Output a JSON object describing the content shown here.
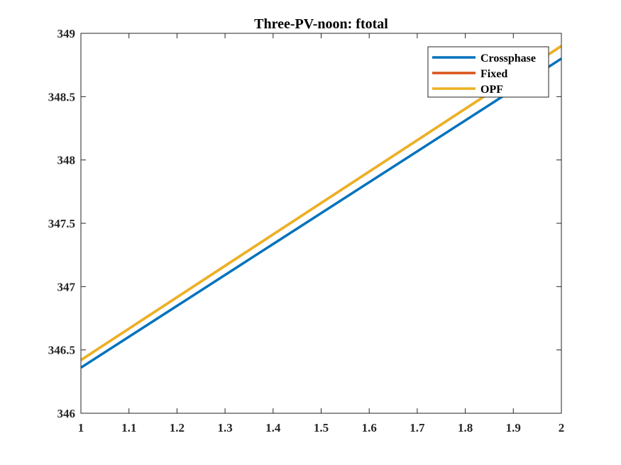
{
  "chart_data": {
    "type": "line",
    "title": "Three-PV-noon: ftotal",
    "xlabel": "",
    "ylabel": "",
    "xlim": [
      1,
      2
    ],
    "ylim": [
      346,
      349
    ],
    "xticks": [
      1,
      1.1,
      1.2,
      1.3,
      1.4,
      1.5,
      1.6,
      1.7,
      1.8,
      1.9,
      2
    ],
    "xtick_labels": [
      "1",
      "1.1",
      "1.2",
      "1.3",
      "1.4",
      "1.5",
      "1.6",
      "1.7",
      "1.8",
      "1.9",
      "2"
    ],
    "yticks": [
      346,
      346.5,
      347,
      347.5,
      348,
      348.5,
      349
    ],
    "ytick_labels": [
      "346",
      "346.5",
      "347",
      "347.5",
      "348",
      "348.5",
      "349"
    ],
    "grid": false,
    "legend_position": "top-right",
    "series": [
      {
        "name": "Crossphase",
        "color": "#0072BD",
        "x": [
          1,
          2
        ],
        "y": [
          346.36,
          348.8
        ]
      },
      {
        "name": "Fixed",
        "color": "#D95319",
        "x": [
          1,
          2
        ],
        "y": [
          346.42,
          348.9
        ]
      },
      {
        "name": "OPF",
        "color": "#EDB120",
        "x": [
          1,
          2
        ],
        "y": [
          346.42,
          348.9
        ]
      }
    ]
  }
}
